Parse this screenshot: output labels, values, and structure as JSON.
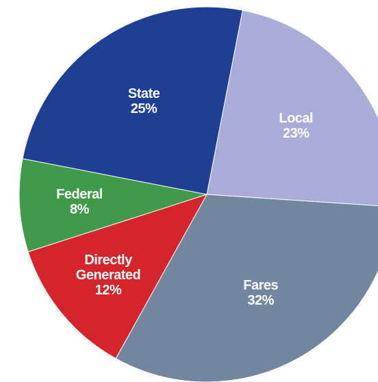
{
  "chart_data": {
    "type": "pie",
    "categories": [
      "Local",
      "Fares",
      "Directly Generated",
      "Federal",
      "State"
    ],
    "values": [
      23,
      32,
      12,
      8,
      25
    ],
    "value_labels": [
      "23%",
      "32%",
      "12%",
      "8%",
      "25%"
    ],
    "colors": [
      "#a9acd6",
      "#71869f",
      "#d3252b",
      "#3f9a4a",
      "#1e3f94"
    ]
  }
}
